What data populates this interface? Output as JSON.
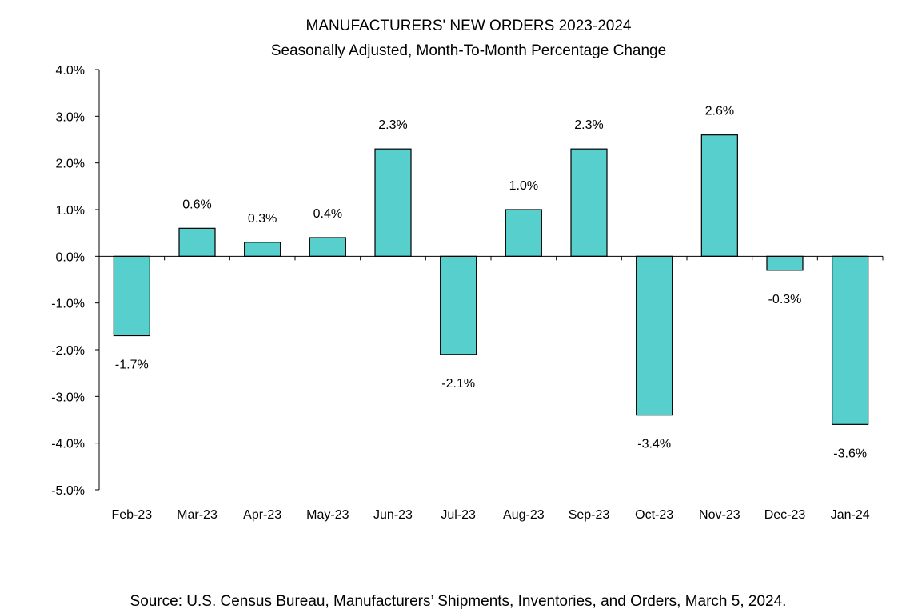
{
  "chart_data": {
    "type": "bar",
    "title": "MANUFACTURERS' NEW ORDERS 2023-2024",
    "subtitle": "Seasonally Adjusted,  Month-To-Month Percentage Change",
    "xlabel": "",
    "ylabel": "",
    "ylim": [
      -5.0,
      4.0
    ],
    "y_ticks": [
      4.0,
      3.0,
      2.0,
      1.0,
      0.0,
      -1.0,
      -2.0,
      -3.0,
      -4.0,
      -5.0
    ],
    "y_tick_labels": [
      "4.0%",
      "3.0%",
      "2.0%",
      "1.0%",
      "0.0%",
      "-1.0%",
      "-2.0%",
      "-3.0%",
      "-4.0%",
      "-5.0%"
    ],
    "categories": [
      "Feb-23",
      "Mar-23",
      "Apr-23",
      "May-23",
      "Jun-23",
      "Jul-23",
      "Aug-23",
      "Sep-23",
      "Oct-23",
      "Nov-23",
      "Dec-23",
      "Jan-24"
    ],
    "values": [
      -1.7,
      0.6,
      0.3,
      0.4,
      2.3,
      -2.1,
      1.0,
      2.3,
      -3.4,
      2.6,
      -0.3,
      -3.6
    ],
    "data_labels": [
      "-1.7%",
      "0.6%",
      "0.3%",
      "0.4%",
      "2.3%",
      "-2.1%",
      "1.0%",
      "2.3%",
      "-3.4%",
      "2.6%",
      "-0.3%",
      "-3.6%"
    ],
    "grid": false,
    "bar_color": "#56CFCD",
    "bar_edge_color": "#000000"
  },
  "source": "Source: U.S. Census Bureau, Manufacturers’ Shipments, Inventories, and Orders, March 5, 2024."
}
